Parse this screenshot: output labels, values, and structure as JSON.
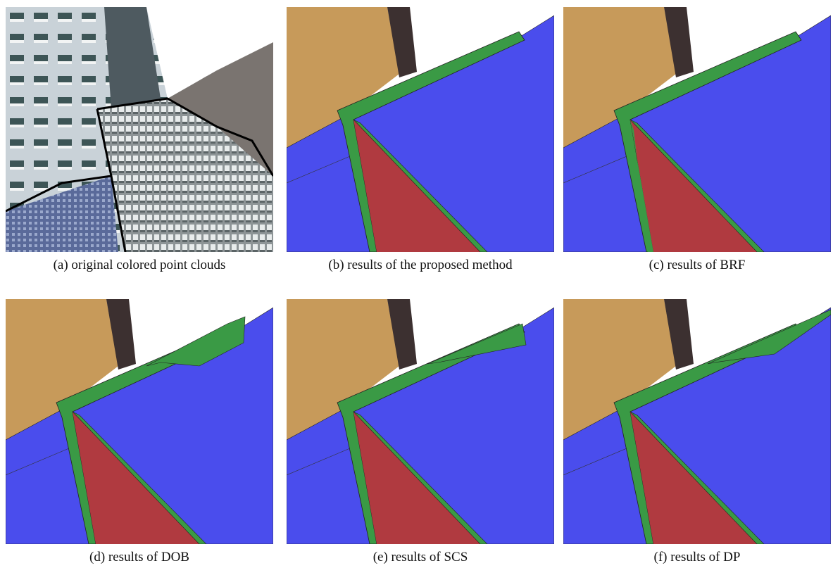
{
  "panels": [
    {
      "caption": "(a) original colored point clouds"
    },
    {
      "caption": "(b) results of the proposed method"
    },
    {
      "caption": "(c) results of BRF"
    },
    {
      "caption": "(d) results of DOB"
    },
    {
      "caption": "(e) results of SCS"
    },
    {
      "caption": "(f) results of DP"
    }
  ]
}
